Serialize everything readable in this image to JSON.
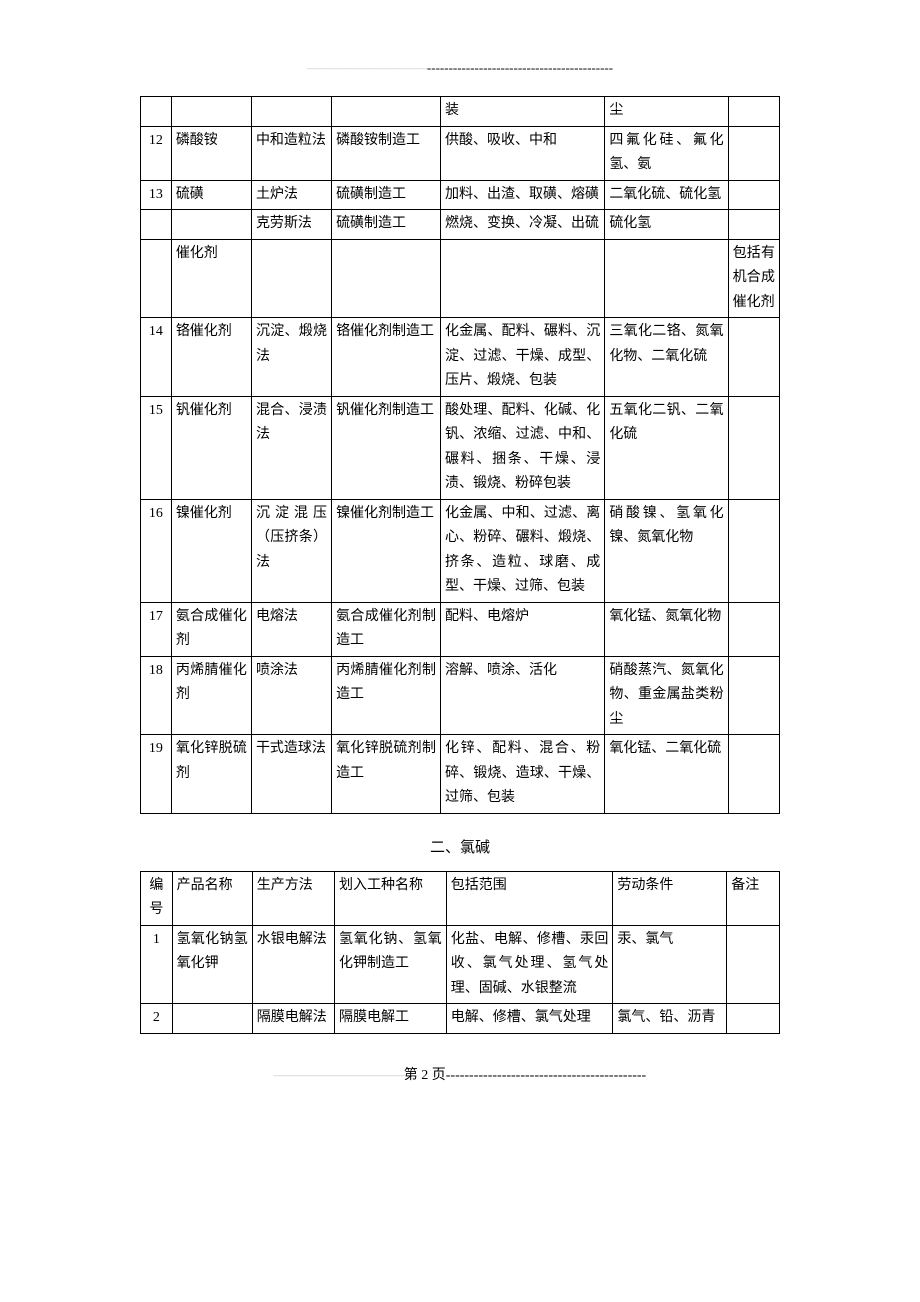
{
  "header_dashes": "-------------------------------------------",
  "table1": {
    "rows": [
      {
        "num": "",
        "name": "",
        "method": "",
        "job": "",
        "scope": "装",
        "cond": "尘",
        "note": ""
      },
      {
        "num": "12",
        "name": "磷酸铵",
        "method": "中和造粒法",
        "job": "磷酸铵制造工",
        "scope": "供酸、吸收、中和",
        "cond": "四氟化硅、氟化氢、氨",
        "note": ""
      },
      {
        "num": "13",
        "name": "硫磺",
        "method": "土炉法",
        "job": "硫磺制造工",
        "scope": "加料、出渣、取磺、熔磺",
        "cond": "二氧化硫、硫化氢",
        "note": ""
      },
      {
        "num": "",
        "name": "",
        "method": "克劳斯法",
        "job": "硫磺制造工",
        "scope": "燃烧、变换、冷凝、出硫",
        "cond": "硫化氢",
        "note": ""
      },
      {
        "num": "",
        "name": "催化剂",
        "method": "",
        "job": "",
        "scope": "",
        "cond": "",
        "note": "包括有机合成催化剂"
      },
      {
        "num": "14",
        "name": "铬催化剂",
        "method": "沉淀、煅烧法",
        "job": "铬催化剂制造工",
        "scope": "化金属、配料、碾料、沉淀、过滤、干燥、成型、压片、煅烧、包装",
        "cond": "三氧化二铬、氮氧化物、二氧化硫",
        "note": ""
      },
      {
        "num": "15",
        "name": "钒催化剂",
        "method": "混合、浸渍法",
        "job": "钒催化剂制造工",
        "scope": "酸处理、配料、化碱、化钒、浓缩、过滤、中和、碾料、捆条、干燥、浸渍、锻烧、粉碎包装",
        "cond": "五氧化二钒、二氧化硫",
        "note": ""
      },
      {
        "num": "16",
        "name": "镍催化剂",
        "method": "沉淀混压（压挤条）法",
        "job": "镍催化剂制造工",
        "scope": "化金属、中和、过滤、离心、粉碎、碾料、煅烧、挤条、造粒、球磨、成型、干燥、过筛、包装",
        "cond": "硝酸镍、氢氧化镍、氮氧化物",
        "note": ""
      },
      {
        "num": "17",
        "name": "氨合成催化剂",
        "method": "电熔法",
        "job": "氨合成催化剂制造工",
        "scope": "配料、电熔炉",
        "cond": "氧化锰、氮氧化物",
        "note": ""
      },
      {
        "num": "18",
        "name": "丙烯腈催化剂",
        "method": "喷涂法",
        "job": "丙烯腈催化剂制造工",
        "scope": "溶解、喷涂、活化",
        "cond": "硝酸蒸汽、氮氧化物、重金属盐类粉尘",
        "note": ""
      },
      {
        "num": "19",
        "name": "氧化锌脱硫剂",
        "method": "干式造球法",
        "job": "氧化锌脱硫剂制造工",
        "scope": "化锌、配料、混合、粉碎、锻烧、造球、干燥、过筛、包装",
        "cond": "氧化锰、二氧化硫",
        "note": ""
      }
    ]
  },
  "section2_title": "二、氯碱",
  "table2": {
    "header": {
      "num": "编号",
      "name": "产品名称",
      "method": "生产方法",
      "job": "划入工种名称",
      "scope": "包括范围",
      "cond": "劳动条件",
      "note": "备注"
    },
    "rows": [
      {
        "num": "1",
        "name": "氢氧化钠氢氧化钾",
        "method": "水银电解法",
        "job": "氢氧化钠、氢氧化钾制造工",
        "scope": "化盐、电解、修槽、汞回收、氯气处理、氢气处理、固碱、水银整流",
        "cond": "汞、氯气",
        "note": ""
      },
      {
        "num": "2",
        "name": "",
        "method": "隔膜电解法",
        "job": "隔膜电解工",
        "scope": "电解、修槽、氯气处理",
        "cond": "氯气、铅、沥青",
        "note": ""
      }
    ]
  },
  "footer": {
    "page_label": "第 2 页",
    "trail": "-------------------------------------------"
  }
}
